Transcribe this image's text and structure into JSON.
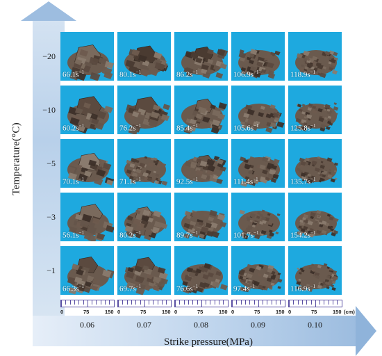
{
  "axes": {
    "y_label": "Temperature(°C)",
    "x_label": "Strike pressure(MPa)"
  },
  "temperatures": [
    "−20",
    "−10",
    "−5",
    "−3",
    "−1"
  ],
  "pressures": [
    "0.06",
    "0.07",
    "0.08",
    "0.09",
    "0.10"
  ],
  "strain_rates": [
    [
      "66.1s",
      "80.1s",
      "86.2s",
      "106.9s",
      "118.9s"
    ],
    [
      "60.2s",
      "76.2s",
      "85.4s",
      "105.6s",
      "125.8s"
    ],
    [
      "70.1s",
      "71.1s",
      "92.5s",
      "111.4s",
      "135.7s"
    ],
    [
      "56.1s",
      "80.2s",
      "89.7s",
      "101.7s",
      "154.2s"
    ],
    [
      "66.3s",
      "69.7s",
      "76.6s",
      "97.4s",
      "116.9s"
    ]
  ],
  "rate_exponent": "−1",
  "ruler": {
    "ticks": [
      "0",
      "75",
      "150"
    ],
    "unit": "(cm)"
  },
  "colors": {
    "tile_background": "#1ea9df",
    "arrow": "#b8d0ea",
    "ruler": "#5a4fa3"
  },
  "tiles_fragmentation": [
    [
      0.15,
      0.25,
      0.35,
      0.6,
      0.75
    ],
    [
      0.15,
      0.2,
      0.4,
      0.55,
      0.85
    ],
    [
      0.25,
      0.8,
      0.45,
      0.6,
      0.9
    ],
    [
      0.2,
      0.45,
      0.5,
      0.8,
      0.85
    ],
    [
      0.3,
      0.35,
      0.5,
      0.75,
      0.9
    ]
  ]
}
